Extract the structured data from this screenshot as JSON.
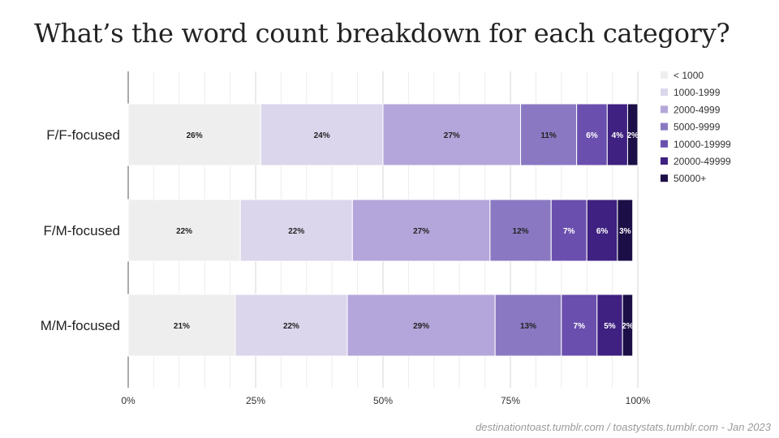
{
  "slide": {
    "title": "What’s the word count breakdown for each category?",
    "credit": "destinationtoast.tumblr.com / toastystats.tumblr.com - Jan 2023"
  },
  "chart_data": {
    "type": "bar",
    "orientation": "horizontal",
    "stacked": "percent",
    "title": "",
    "xlabel": "",
    "ylabel": "",
    "xlim": [
      0,
      100
    ],
    "x_ticks": [
      "0%",
      "25%",
      "50%",
      "75%",
      "100%"
    ],
    "categories": [
      "F/F-focused",
      "F/M-focused",
      "M/M-focused"
    ],
    "legend_position": "right",
    "grid": true,
    "series": [
      {
        "name": "< 1000",
        "color": "#eeeeee",
        "label_color": "#222222",
        "values": [
          26,
          22,
          21
        ]
      },
      {
        "name": "1000-1999",
        "color": "#dcd6ec",
        "label_color": "#222222",
        "values": [
          24,
          22,
          22
        ]
      },
      {
        "name": "2000-4999",
        "color": "#b4a6da",
        "label_color": "#222222",
        "values": [
          27,
          27,
          29
        ]
      },
      {
        "name": "5000-9999",
        "color": "#8a79c2",
        "label_color": "#222222",
        "values": [
          11,
          12,
          13
        ]
      },
      {
        "name": "10000-19999",
        "color": "#6a4fae",
        "label_color": "#ffffff",
        "values": [
          6,
          7,
          7
        ]
      },
      {
        "name": "20000-49999",
        "color": "#3e2180",
        "label_color": "#ffffff",
        "values": [
          4,
          6,
          5
        ]
      },
      {
        "name": "50000+",
        "color": "#1c0f47",
        "label_color": "#ffffff",
        "values": [
          2,
          3,
          2
        ]
      }
    ]
  }
}
